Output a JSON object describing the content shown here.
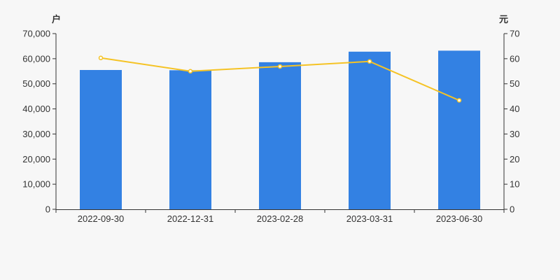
{
  "chart_data": {
    "type": "bar",
    "categories": [
      "2022-09-30",
      "2022-12-31",
      "2023-02-28",
      "2023-03-31",
      "2023-06-30"
    ],
    "series": [
      {
        "type": "bar",
        "axis": "left",
        "values": [
          55500,
          55400,
          58600,
          62800,
          63200
        ]
      },
      {
        "type": "line",
        "axis": "right",
        "values": [
          60.3,
          55.0,
          56.9,
          58.9,
          43.4
        ]
      }
    ],
    "left_axis": {
      "unit": "户",
      "range": [
        0,
        70000
      ],
      "ticks": [
        0,
        10000,
        20000,
        30000,
        40000,
        50000,
        60000,
        70000
      ],
      "tick_labels": [
        "0",
        "10,000",
        "20,000",
        "30,000",
        "40,000",
        "50,000",
        "60,000",
        "70,000"
      ]
    },
    "right_axis": {
      "unit": "元",
      "range": [
        0,
        70
      ],
      "ticks": [
        0,
        10,
        20,
        30,
        40,
        50,
        60,
        70
      ],
      "tick_labels": [
        "0",
        "10",
        "20",
        "30",
        "40",
        "50",
        "60",
        "70"
      ]
    },
    "grid": false,
    "legend": "none"
  },
  "colors": {
    "bar": "#3381e3",
    "line": "#f5c325",
    "axis": "#333333",
    "background": "#f7f7f7"
  }
}
